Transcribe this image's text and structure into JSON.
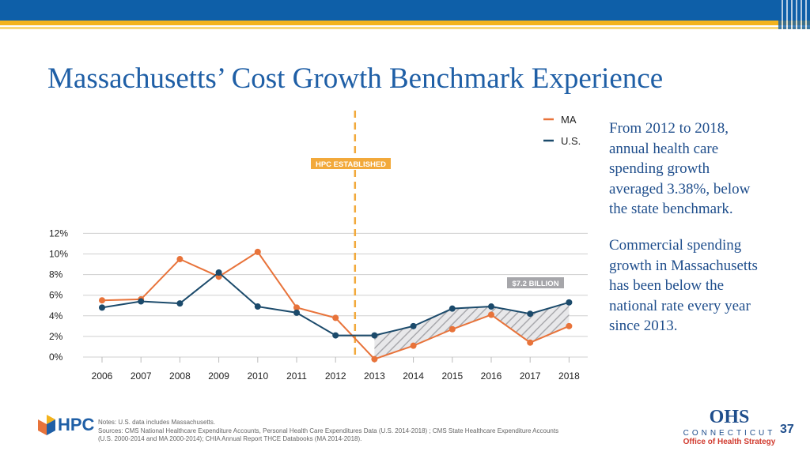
{
  "header": {
    "title": "Massachusetts’ Cost Growth Benchmark Experience"
  },
  "chart_data": {
    "type": "line",
    "categories": [
      "2006",
      "2007",
      "2008",
      "2009",
      "2010",
      "2011",
      "2012",
      "2013",
      "2014",
      "2015",
      "2016",
      "2017",
      "2018"
    ],
    "series": [
      {
        "name": "MA",
        "color": "#e8733a",
        "values": [
          5.5,
          5.6,
          9.5,
          7.8,
          10.2,
          4.8,
          3.8,
          -0.2,
          1.1,
          2.7,
          4.1,
          1.4,
          3.0
        ]
      },
      {
        "name": "U.S.",
        "color": "#1b4a6b",
        "values": [
          4.8,
          5.4,
          5.2,
          8.2,
          4.9,
          4.3,
          2.1,
          2.1,
          3.0,
          4.7,
          4.9,
          4.2,
          5.3
        ]
      }
    ],
    "yticks": [
      "0%",
      "2%",
      "4%",
      "6%",
      "8%",
      "10%",
      "12%"
    ],
    "ylim": [
      0,
      12
    ],
    "annotations": {
      "established_label": "HPC ESTABLISHED",
      "savings_label": "$7.2 BILLION"
    },
    "legend_position": "top-right"
  },
  "sidebar": {
    "para1": "From 2012 to 2018, annual health care spending growth averaged 3.38%, below the state benchmark.",
    "para2": "Commercial spending growth in Massachusetts has been below the national rate every year since 2013."
  },
  "footer": {
    "hpc_logo": "HPC",
    "notes_line1": "Notes: U.S. data includes Massachusetts.",
    "notes_line2": "Sources: CMS National Healthcare Expenditure Accounts, Personal Health Care Expenditures Data (U.S. 2014-2018) ; CMS State Healthcare Expenditure Accounts",
    "notes_line3": "(U.S. 2000-2014 and MA 2000-2014); CHIA Annual Report THCE Databooks (MA 2014-2018).",
    "ohs_big": "OHS",
    "ohs_ct": "CONNECTICUT",
    "ohs_sub": "Office of Health Strategy",
    "page_number": "37"
  }
}
